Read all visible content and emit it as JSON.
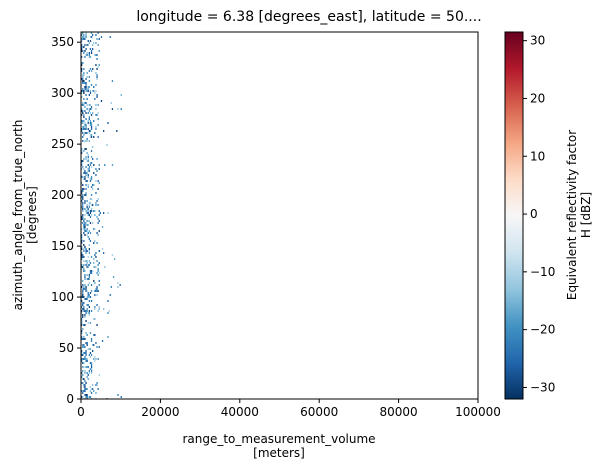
{
  "chart_data": {
    "type": "heatmap",
    "title": "longitude = 6.38 [degrees_east], latitude = 50....",
    "xlabel": "range_to_measurement_volume",
    "xlabel_units": "[meters]",
    "ylabel": "azimuth_angle_from_true_north",
    "ylabel_units": "[degrees]",
    "xlim": [
      0,
      100000
    ],
    "ylim": [
      0,
      360
    ],
    "x_ticks": [
      0,
      20000,
      40000,
      60000,
      80000,
      100000
    ],
    "y_ticks": [
      0,
      50,
      100,
      150,
      200,
      250,
      300,
      350
    ],
    "colorbar": {
      "label_line1": "Equivalent reflectivity factor",
      "label_line2": "H [dBZ]",
      "vmin": -32,
      "vmax": 31.5,
      "ticks": [
        -30,
        -20,
        -10,
        0,
        10,
        20,
        30
      ],
      "colormap": "RdBu_r",
      "stops": [
        "#053061",
        "#2166ac",
        "#4393c3",
        "#92c5de",
        "#d1e5f0",
        "#f7f7f7",
        "#fddbc7",
        "#f4a582",
        "#d6604d",
        "#b2182b",
        "#67001f"
      ]
    },
    "data_extent": {
      "x_dense_max": 2500,
      "x_sparse_max": 10000,
      "typical_value_range": [
        -30,
        -10
      ]
    },
    "grid": false
  }
}
